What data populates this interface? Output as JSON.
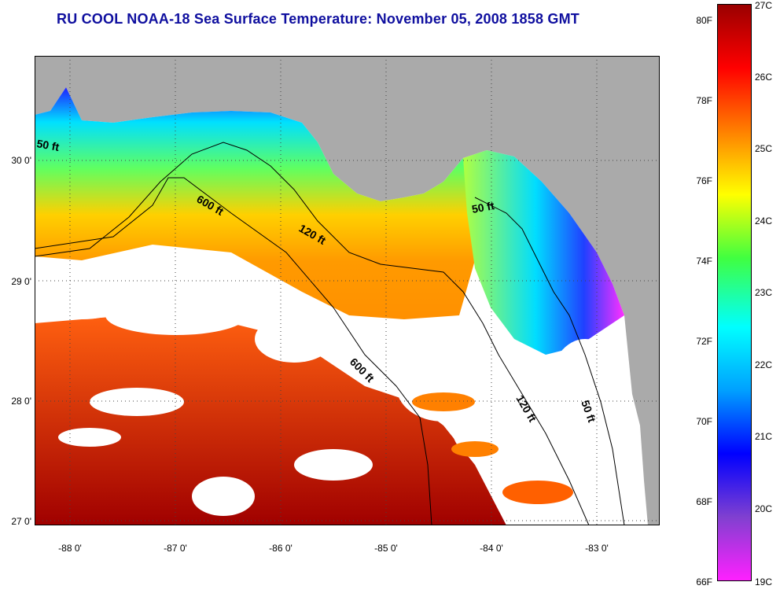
{
  "title": "RU COOL  NOAA-18  Sea Surface Temperature:  November 05, 2008 1858 GMT",
  "map": {
    "latitude_labels": [
      "30 0'",
      "29 0'",
      "28 0'",
      "27 0'"
    ],
    "longitude_labels": [
      "-88 0'",
      "-87 0'",
      "-86 0'",
      "-85 0'",
      "-84 0'",
      "-83 0'"
    ],
    "isobath_labels": [
      "50 ft",
      "600 ft",
      "120 ft",
      "50 ft",
      "600 ft",
      "120 ft",
      "50 ft"
    ],
    "land_color": "#aaaaaa",
    "cloud_color": "#ffffff"
  },
  "colorbar": {
    "fahrenheit_labels": [
      "80F",
      "78F",
      "76F",
      "74F",
      "72F",
      "70F",
      "68F",
      "66F"
    ],
    "celsius_labels": [
      "27C",
      "26C",
      "25C",
      "24C",
      "23C",
      "22C",
      "21C",
      "20C",
      "19C"
    ],
    "colors": [
      "#9a0000",
      "#ff0000",
      "#ff8000",
      "#ffff00",
      "#40ff40",
      "#00ffff",
      "#00a0ff",
      "#0000ff",
      "#8040d0",
      "#ff20ff"
    ]
  }
}
